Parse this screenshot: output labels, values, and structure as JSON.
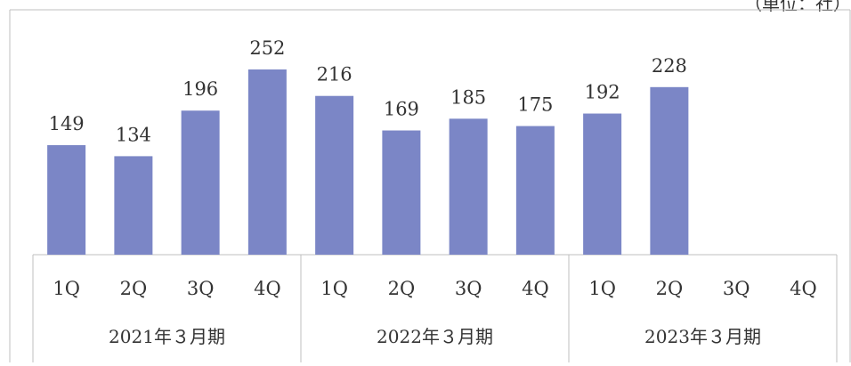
{
  "unit_label": "（単位：社）",
  "chart_data": {
    "type": "bar",
    "title": "",
    "xlabel": "",
    "ylabel": "",
    "ylim": [
      0,
      260
    ],
    "grid": false,
    "legend": "none",
    "bar_color": "#7b86c6",
    "categories": [
      "1Q",
      "2Q",
      "3Q",
      "4Q",
      "1Q",
      "2Q",
      "3Q",
      "4Q",
      "1Q",
      "2Q",
      "3Q",
      "4Q"
    ],
    "category_labels": [
      "1Q",
      "2Q",
      "3Q",
      "4Q",
      "1Q",
      "2Q",
      "3Q",
      "4Q",
      "1Q",
      "2Q",
      "3Q",
      "4Q"
    ],
    "values": [
      149,
      134,
      196,
      252,
      216,
      169,
      185,
      175,
      192,
      228,
      null,
      null
    ],
    "data_labels": [
      "149",
      "134",
      "196",
      "252",
      "216",
      "169",
      "185",
      "175",
      "192",
      "228",
      "",
      ""
    ],
    "groups": [
      {
        "label": "2021年３月期",
        "span": 4
      },
      {
        "label": "2022年３月期",
        "span": 4
      },
      {
        "label": "2023年３月期",
        "span": 4
      }
    ]
  }
}
